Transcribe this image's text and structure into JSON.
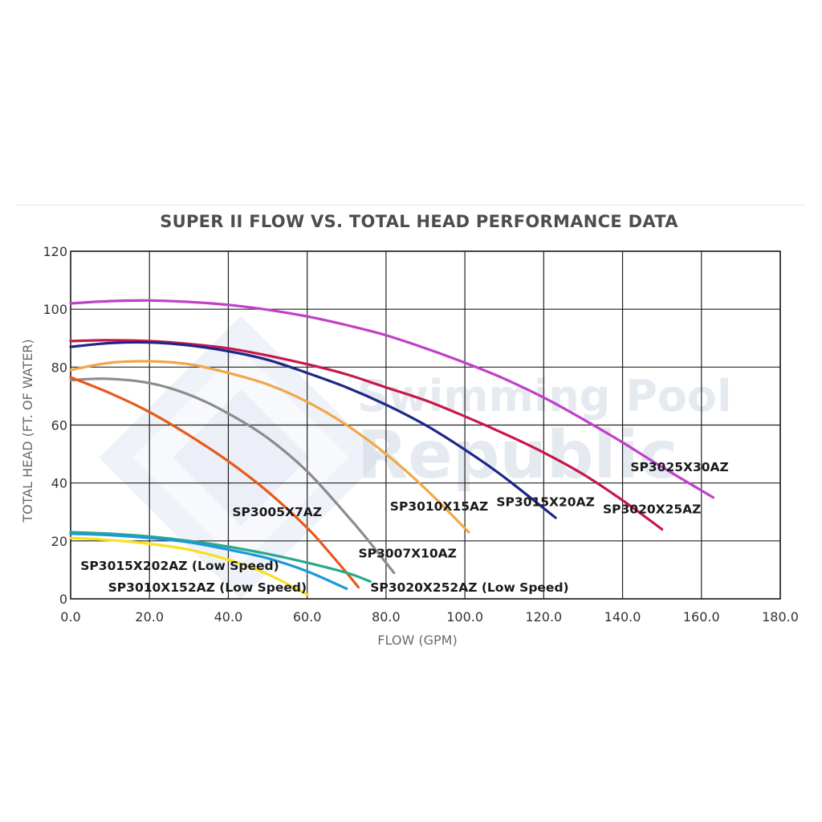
{
  "chart_data": {
    "type": "line",
    "title": "SUPER II  FLOW VS. TOTAL HEAD PERFORMANCE DATA",
    "xlabel": "FLOW (GPM)",
    "ylabel": "TOTAL HEAD (FT. OF WATER)",
    "xlim": [
      0,
      180
    ],
    "ylim": [
      0,
      120
    ],
    "x_ticks": [
      "0.0",
      "20.0",
      "40.0",
      "60.0",
      "80.0",
      "100.0",
      "120.0",
      "140.0",
      "160.0",
      "180.0"
    ],
    "y_ticks": [
      "0",
      "20",
      "40",
      "60",
      "80",
      "100",
      "120"
    ],
    "grid": true,
    "legend": "none",
    "watermark": {
      "line1": "Swimming Pool",
      "line2": "Republic"
    },
    "series": [
      {
        "name": "SP3025X30AZ",
        "color": "#c040c8",
        "x": [
          0,
          10,
          20,
          30,
          40,
          50,
          60,
          70,
          80,
          90,
          100,
          110,
          120,
          130,
          140,
          150,
          163
        ],
        "y": [
          102,
          102.8,
          103,
          102.5,
          101.5,
          99.8,
          97.5,
          94.5,
          91,
          86.5,
          81.5,
          76,
          69.5,
          62,
          54,
          45.5,
          35
        ]
      },
      {
        "name": "SP3020X25AZ",
        "color": "#c8184a",
        "x": [
          0,
          10,
          20,
          30,
          40,
          50,
          60,
          70,
          80,
          90,
          100,
          110,
          120,
          130,
          140,
          150
        ],
        "y": [
          89,
          89.3,
          89,
          88,
          86.5,
          84,
          81,
          77.5,
          73,
          68.5,
          63,
          57,
          50.5,
          43,
          34,
          24
        ]
      },
      {
        "name": "SP3015X20AZ",
        "color": "#1c2888",
        "x": [
          0,
          10,
          20,
          30,
          40,
          50,
          60,
          70,
          80,
          90,
          100,
          110,
          123
        ],
        "y": [
          87,
          88.3,
          88.5,
          87.5,
          85.5,
          82.5,
          78,
          73,
          67,
          60,
          51.5,
          42,
          28
        ]
      },
      {
        "name": "SP3010X15AZ",
        "color": "#f0a848",
        "x": [
          0,
          10,
          20,
          30,
          40,
          50,
          60,
          70,
          80,
          90,
          101
        ],
        "y": [
          79,
          81.5,
          82,
          81,
          78,
          74,
          68,
          60,
          50,
          38,
          23
        ]
      },
      {
        "name": "SP3007X10AZ",
        "color": "#8c8c8c",
        "x": [
          0,
          9,
          20,
          30,
          40,
          50,
          60,
          70,
          75,
          82
        ],
        "y": [
          75.5,
          76,
          74.5,
          70.5,
          64,
          55.5,
          44,
          29,
          21,
          9
        ]
      },
      {
        "name": "SP3005X7AZ",
        "color": "#e85a1a",
        "x": [
          0,
          10,
          20,
          30,
          40,
          50,
          60,
          65,
          70,
          73
        ],
        "y": [
          76.5,
          71,
          64.5,
          56.5,
          47.5,
          37,
          24.5,
          17,
          9,
          4
        ]
      },
      {
        "name": "SP3020X252AZ (Low Speed)",
        "color": "#2aa88a",
        "x": [
          0,
          10,
          20,
          30,
          40,
          50,
          60,
          70,
          76
        ],
        "y": [
          23,
          22.5,
          21.5,
          20,
          18,
          15.5,
          12.5,
          9,
          6
        ]
      },
      {
        "name": "SP3015X202AZ (Low Speed)",
        "color": "#1c98d8",
        "x": [
          0,
          10,
          20,
          30,
          40,
          50,
          60,
          70
        ],
        "y": [
          22.5,
          22,
          21,
          19.5,
          17,
          14,
          9.5,
          3.5
        ]
      },
      {
        "name": "SP3010X152AZ (Low Speed)",
        "color": "#f8e020",
        "x": [
          0,
          10,
          20,
          30,
          40,
          50,
          60
        ],
        "y": [
          21,
          20.3,
          19,
          17,
          13.5,
          8.5,
          1.5
        ]
      }
    ],
    "annotations": [
      {
        "text": "SP3025X30AZ",
        "x": 142,
        "y": 44
      },
      {
        "text": "SP3020X25AZ",
        "x": 135,
        "y": 29.5
      },
      {
        "text": "SP3015X20AZ",
        "x": 108,
        "y": 32
      },
      {
        "text": "SP3010X15AZ",
        "x": 81,
        "y": 30.5
      },
      {
        "text": "SP3005X7AZ",
        "x": 41,
        "y": 28.5
      },
      {
        "text": "SP3007X10AZ",
        "x": 73,
        "y": 14.3
      },
      {
        "text": "SP3015X202AZ  (Low Speed)",
        "x": 2.5,
        "y": 10
      },
      {
        "text": "SP3010X152AZ  (Low Speed)",
        "x": 9.5,
        "y": 2.5
      },
      {
        "text": "SP3020X252AZ  (Low Speed)",
        "x": 76,
        "y": 2.5
      }
    ]
  }
}
